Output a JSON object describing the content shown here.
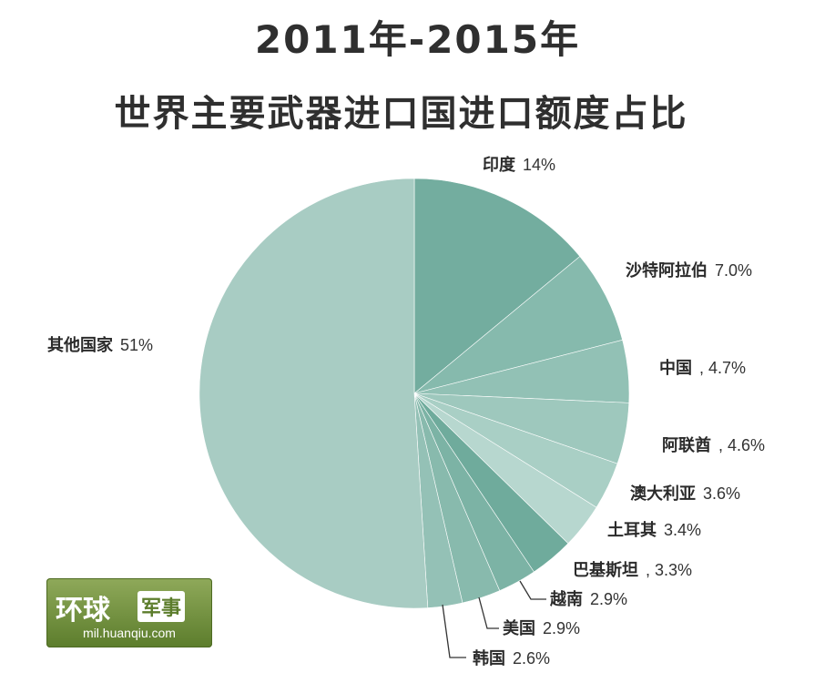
{
  "header": {
    "title_line1": "2011年-2015年",
    "title_line2": "世界主要武器进口国进口额度占比"
  },
  "chart_data": {
    "type": "pie",
    "title": "2011年-2015年 世界主要武器进口国进口额度占比",
    "slices": [
      {
        "name": "印度",
        "label": "14%",
        "value": 14,
        "color": "#73ad9f"
      },
      {
        "name": "沙特阿拉伯",
        "label": "7.0%",
        "value": 7.0,
        "color": "#86baad"
      },
      {
        "name": "中国",
        "label": ", 4.7%",
        "value": 4.7,
        "color": "#92c1b5"
      },
      {
        "name": "阿联酋",
        "label": ", 4.6%",
        "value": 4.6,
        "color": "#9ec8bd"
      },
      {
        "name": "澳大利亚",
        "label": "3.6%",
        "value": 3.6,
        "color": "#a9cfc5"
      },
      {
        "name": "土耳其",
        "label": "3.4%",
        "value": 3.4,
        "color": "#b7d7cf"
      },
      {
        "name": "巴基斯坦",
        "label": ", 3.3%",
        "value": 3.3,
        "color": "#6fab9c"
      },
      {
        "name": "越南",
        "label": "2.9%",
        "value": 2.9,
        "color": "#7cb3a5"
      },
      {
        "name": "美国",
        "label": "2.9%",
        "value": 2.9,
        "color": "#88baad"
      },
      {
        "name": "韩国",
        "label": "2.6%",
        "value": 2.6,
        "color": "#94c1b6"
      },
      {
        "name": "其他国家",
        "label": "51%",
        "value": 51,
        "color": "#a8ccc3"
      }
    ]
  },
  "watermark": {
    "brand": "环球",
    "tag": "军事",
    "url": "mil.huanqiu.com"
  }
}
